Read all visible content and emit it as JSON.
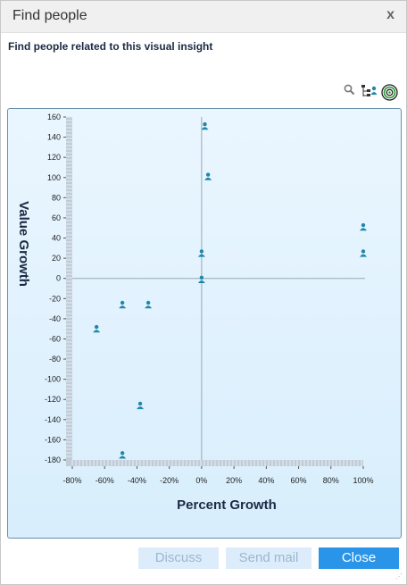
{
  "dialog": {
    "title": "Find people",
    "close_glyph": "x",
    "subtitle": "Find people related to this visual insight"
  },
  "toolbar": {
    "icons": [
      "search-icon",
      "hierarchy-icon",
      "target-icon"
    ]
  },
  "buttons": {
    "discuss": "Discuss",
    "send_mail": "Send mail",
    "close": "Close"
  },
  "colors": {
    "marker": "#1f88a8",
    "chart_bg": "#e2f2ff",
    "primary_button": "#2a95e8",
    "disabled_button": "#dcecfa"
  },
  "chart_data": {
    "type": "scatter",
    "xlabel": "Percent Growth",
    "ylabel": "Value Growth",
    "xlim": [
      -80,
      100
    ],
    "ylim": [
      -180,
      160
    ],
    "x_ticks": [
      "-80%",
      "-60%",
      "-40%",
      "-20%",
      "0%",
      "20%",
      "40%",
      "60%",
      "80%",
      "100%"
    ],
    "y_ticks": [
      "160",
      "140",
      "120",
      "100",
      "80",
      "60",
      "40",
      "20",
      "0",
      "-20",
      "-40",
      "-60",
      "-80",
      "-100",
      "-120",
      "-140",
      "-160",
      "-180"
    ],
    "grid": false,
    "points": [
      {
        "x": 2,
        "y": 150
      },
      {
        "x": 4,
        "y": 100
      },
      {
        "x": 100,
        "y": 50
      },
      {
        "x": 100,
        "y": 24
      },
      {
        "x": 0,
        "y": 24
      },
      {
        "x": 0,
        "y": -2
      },
      {
        "x": -49,
        "y": -27
      },
      {
        "x": -33,
        "y": -27
      },
      {
        "x": -65,
        "y": -51
      },
      {
        "x": -38,
        "y": -127
      },
      {
        "x": -49,
        "y": -176
      }
    ]
  }
}
